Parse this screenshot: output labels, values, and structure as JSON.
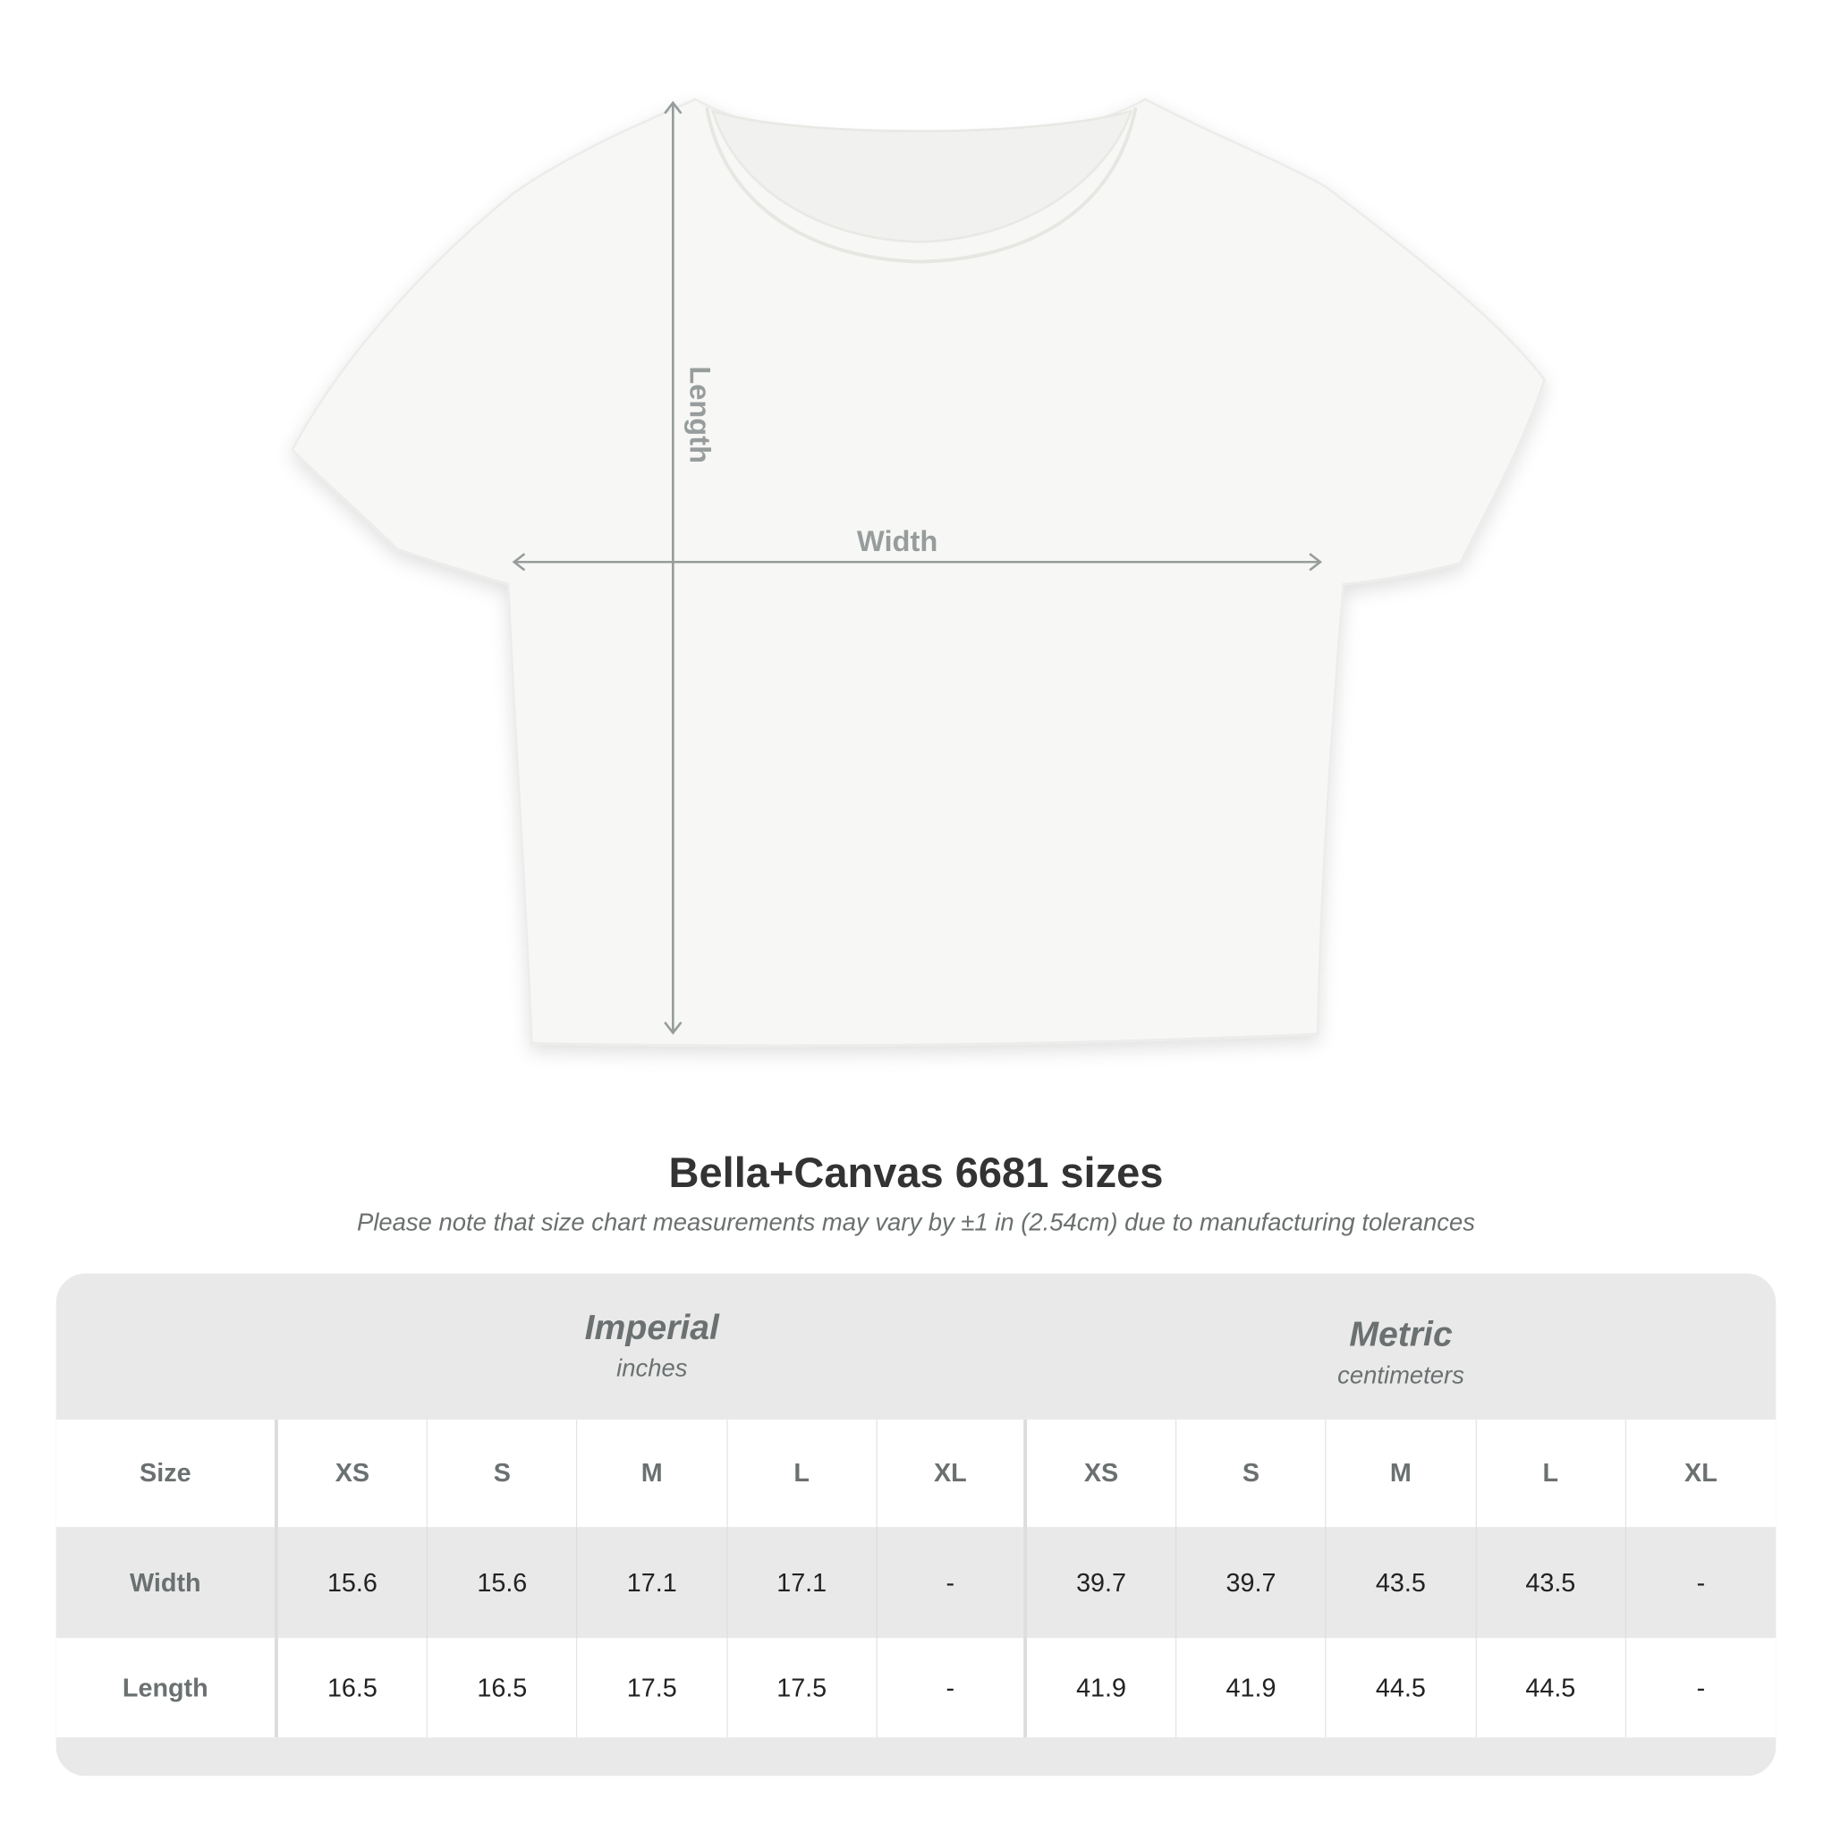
{
  "diagram": {
    "length_label": "Length",
    "width_label": "Width",
    "arrow_color": "#979c9c",
    "garment_color": "#f7f7f5"
  },
  "title": "Bella+Canvas 6681 sizes",
  "note": "Please note that size chart measurements may vary by ±1 in (2.54cm) due to manufacturing tolerances",
  "table": {
    "imperial": {
      "title": "Imperial",
      "unit": "inches"
    },
    "metric": {
      "title": "Metric",
      "unit": "centimeters"
    },
    "rows": [
      {
        "label": "Size",
        "values": [
          "XS",
          "S",
          "M",
          "L",
          "XL",
          "XS",
          "S",
          "M",
          "L",
          "XL"
        ]
      },
      {
        "label": "Width",
        "values": [
          "15.6",
          "15.6",
          "17.1",
          "17.1",
          "-",
          "39.7",
          "39.7",
          "43.5",
          "43.5",
          "-"
        ]
      },
      {
        "label": "Length",
        "values": [
          "16.5",
          "16.5",
          "17.5",
          "17.5",
          "-",
          "41.9",
          "41.9",
          "44.5",
          "44.5",
          "-"
        ]
      }
    ]
  }
}
